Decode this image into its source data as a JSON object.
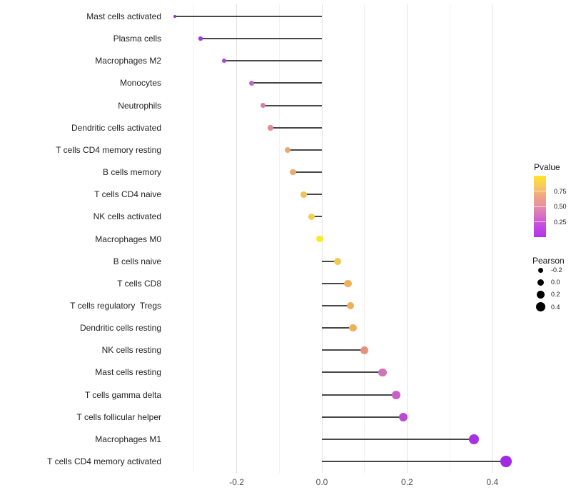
{
  "figure": {
    "background": "#FFFFFF",
    "label_color": "#1F1F1F",
    "axis_text_color": "#4D4D4D",
    "segment_color": "#474747",
    "grid_major_color": "#E4E4E4",
    "grid_minor_color": "#F2F2F2"
  },
  "chart_data": {
    "type": "scatter",
    "subtype": "lollipop",
    "orientation": "horizontal",
    "title": "",
    "xlabel": "",
    "ylabel": "",
    "xlim": [
      -0.357,
      0.504
    ],
    "grid": "vertical major and minor, no horizontal",
    "legend_position": "right",
    "x_tick_labels": [
      "-0.2",
      "0.0",
      "0.2",
      "0.4"
    ],
    "x_major_ticks": [
      -0.2,
      0.0,
      0.2,
      0.4
    ],
    "x_minor_gridlines": [
      -0.3,
      -0.1,
      0.1,
      0.3
    ],
    "points": [
      {
        "label": "Mast cells activated",
        "pearson": -0.345,
        "color": "#9232DC"
      },
      {
        "label": "Plasma cells",
        "pearson": -0.285,
        "color": "#A434DB"
      },
      {
        "label": "Macrophages M2",
        "pearson": -0.23,
        "color": "#AD41DB"
      },
      {
        "label": "Monocytes",
        "pearson": -0.165,
        "color": "#C263CE"
      },
      {
        "label": "Neutrophils",
        "pearson": -0.138,
        "color": "#D77FA6"
      },
      {
        "label": "Dendritic cells activated",
        "pearson": -0.12,
        "color": "#DE8B91"
      },
      {
        "label": "T cells CD4 memory resting",
        "pearson": -0.08,
        "color": "#E8A87A"
      },
      {
        "label": "B cells memory",
        "pearson": -0.068,
        "color": "#EBAA6F"
      },
      {
        "label": "T cells CD4 naive",
        "pearson": -0.042,
        "color": "#F0C155"
      },
      {
        "label": "NK cells activated",
        "pearson": -0.025,
        "color": "#F2D14A"
      },
      {
        "label": "Macrophages M0",
        "pearson": -0.005,
        "color": "#FBEB22"
      },
      {
        "label": "B cells naive",
        "pearson": 0.037,
        "color": "#F0CA51"
      },
      {
        "label": "T cells CD8",
        "pearson": 0.061,
        "color": "#EFB257"
      },
      {
        "label": "T cells regulatory  Tregs",
        "pearson": 0.067,
        "color": "#EFAF5A"
      },
      {
        "label": "Dendritic cells resting",
        "pearson": 0.073,
        "color": "#EFB05C"
      },
      {
        "label": "NK cells resting",
        "pearson": 0.1,
        "color": "#E6937C"
      },
      {
        "label": "Mast cells resting",
        "pearson": 0.142,
        "color": "#D173B5"
      },
      {
        "label": "T cells gamma delta",
        "pearson": 0.174,
        "color": "#C95FC6"
      },
      {
        "label": "T cells follicular helper",
        "pearson": 0.191,
        "color": "#BC49D6"
      },
      {
        "label": "Macrophages M1",
        "pearson": 0.357,
        "color": "#A832E2"
      },
      {
        "label": "T cells CD4 memory activated",
        "pearson": 0.432,
        "color": "#A02BE4"
      }
    ]
  },
  "legend_pvalue": {
    "title": "Pvalue",
    "tick_labels": [
      "0.75",
      "0.50",
      "0.25"
    ],
    "tick_fractions_from_top": [
      0.25,
      0.5,
      0.75
    ],
    "gradient_top_to_bottom": [
      "#FCE724",
      "#F7CB5F",
      "#EFA583",
      "#E68FA6",
      "#D66CC8",
      "#C148E3",
      "#B335EC"
    ]
  },
  "legend_pearson": {
    "title": "Pearson",
    "dot_color": "#000000",
    "entries": [
      {
        "label": "-0.2",
        "diameter": 7
      },
      {
        "label": "0.0",
        "diameter": 9
      },
      {
        "label": "0.2",
        "diameter": 11
      },
      {
        "label": "0.4",
        "diameter": 13
      }
    ]
  }
}
